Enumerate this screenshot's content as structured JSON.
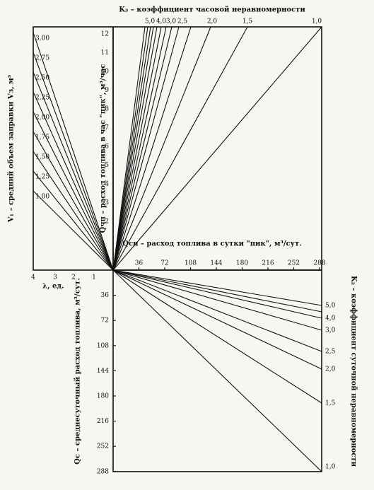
{
  "title": "K₃ – коэффициент часовой неравномерности",
  "left_axis": {
    "label": "V₁ – средний объем заправки Vз, м³",
    "ticks": [
      "3,00",
      "2,75",
      "2,50",
      "2,25",
      "2,00",
      "1,75",
      "1,50",
      "1,25",
      "1,00"
    ]
  },
  "top_axis": {
    "ticks": [
      "5,0",
      "4,0",
      "3,0",
      "2,5",
      "2,0",
      "1,5",
      "1,0"
    ]
  },
  "hourly_axis": {
    "label": "Qчп – расход топлива в час \"пик\", м³/час",
    "ticks": [
      "12",
      "11",
      "10",
      "9",
      "8",
      "7",
      "6",
      "5",
      "4",
      "3",
      "2"
    ]
  },
  "daily_peak_axis": {
    "label": "Qсп – расход топлива в сутки \"пик\", м³/сут.",
    "ticks": [
      "36",
      "72",
      "108",
      "144",
      "180",
      "216",
      "252",
      "288"
    ]
  },
  "lambda_axis": {
    "label": "λ, ед.",
    "ticks": [
      "4",
      "3",
      "2",
      "1"
    ]
  },
  "daily_avg_axis": {
    "label": "Qс – среднесуточный расход топлива, м³/сут.",
    "ticks": [
      "36",
      "72",
      "108",
      "144",
      "180",
      "216",
      "252",
      "288"
    ]
  },
  "right_axis": {
    "label": "K₂ – коэффициент суточной неравномерности",
    "ticks": [
      "5,0",
      "4,0",
      "3,0",
      "2,5",
      "2,0",
      "1,5",
      "1,0"
    ]
  }
}
